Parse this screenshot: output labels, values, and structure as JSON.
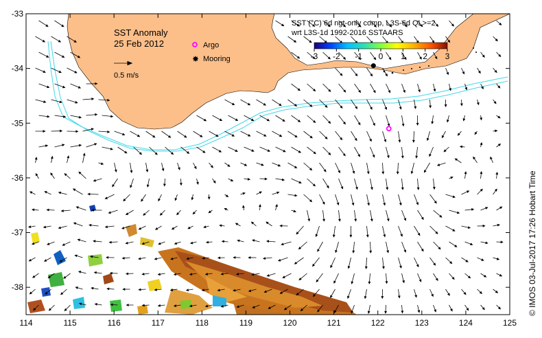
{
  "map": {
    "title": "SST Anomaly",
    "date": "25 Feb 2012",
    "scale_label": "0.5 m/s",
    "legend": {
      "argo_label": "Argo",
      "mooring_label": "Mooring",
      "argo_color": "#ff00ff",
      "mooring_color": "#000000"
    },
    "product_line1": "SST (°C) 6d ngt-only comp, L3S-6d QL>=2",
    "product_line2": "wrt L3S-1d 1992-2016 SSTAARS",
    "colorbar": {
      "ticks": [
        "-3",
        "-2",
        "-1",
        "0",
        "1",
        "2",
        "3"
      ],
      "range": [
        -3,
        3
      ],
      "colors": [
        "#1a0080",
        "#0040ff",
        "#00c0ff",
        "#40e0a0",
        "#80ff40",
        "#ffff00",
        "#ffb000",
        "#ff6000",
        "#c02000",
        "#801000"
      ]
    },
    "x_ticks": [
      "114",
      "115",
      "116",
      "117",
      "118",
      "119",
      "120",
      "121",
      "122",
      "123",
      "124",
      "125"
    ],
    "y_ticks": [
      "-33",
      "-34",
      "-35",
      "-36",
      "-37",
      "-38"
    ],
    "lon_range": [
      114,
      125
    ],
    "lat_range": [
      -38.5,
      -33
    ],
    "credit": "© IMOS 03-Jul-2017 17:26 Hobart Time",
    "land_color": "#fcbf8a",
    "contour_color": "#40d8e8",
    "argo_position": {
      "lon": 122.25,
      "lat": -35.1
    },
    "mooring_position": {
      "lon": 121.9,
      "lat": -33.95
    }
  }
}
